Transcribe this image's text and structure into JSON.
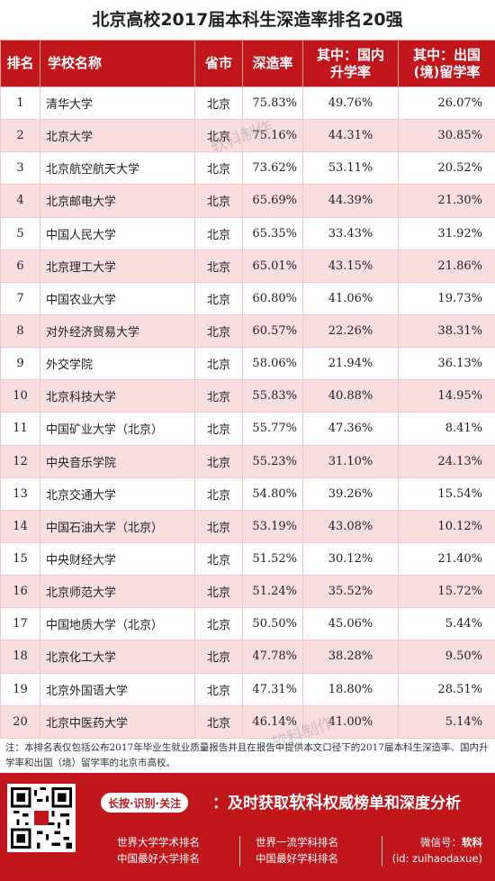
{
  "title": "北京高校2017届本科生深造率排名20强",
  "headers": {
    "rank": "排名",
    "name": "学校名称",
    "province": "省市",
    "rate": "深造率",
    "domestic_l1": "其中：国内",
    "domestic_l2": "升学率",
    "abroad_l1": "其中：出国",
    "abroad_l2": "(境)留学率"
  },
  "rows": [
    {
      "rank": "1",
      "name": "清华大学",
      "province": "北京",
      "rate": "75.83%",
      "domestic": "49.76%",
      "abroad": "26.07%"
    },
    {
      "rank": "2",
      "name": "北京大学",
      "province": "北京",
      "rate": "75.16%",
      "domestic": "44.31%",
      "abroad": "30.85%"
    },
    {
      "rank": "3",
      "name": "北京航空航天大学",
      "province": "北京",
      "rate": "73.62%",
      "domestic": "53.11%",
      "abroad": "20.52%"
    },
    {
      "rank": "4",
      "name": "北京邮电大学",
      "province": "北京",
      "rate": "65.69%",
      "domestic": "44.39%",
      "abroad": "21.30%"
    },
    {
      "rank": "5",
      "name": "中国人民大学",
      "province": "北京",
      "rate": "65.35%",
      "domestic": "33.43%",
      "abroad": "31.92%"
    },
    {
      "rank": "6",
      "name": "北京理工大学",
      "province": "北京",
      "rate": "65.01%",
      "domestic": "43.15%",
      "abroad": "21.86%"
    },
    {
      "rank": "7",
      "name": "中国农业大学",
      "province": "北京",
      "rate": "60.80%",
      "domestic": "41.06%",
      "abroad": "19.73%"
    },
    {
      "rank": "8",
      "name": "对外经济贸易大学",
      "province": "北京",
      "rate": "60.57%",
      "domestic": "22.26%",
      "abroad": "38.31%"
    },
    {
      "rank": "9",
      "name": "外交学院",
      "province": "北京",
      "rate": "58.06%",
      "domestic": "21.94%",
      "abroad": "36.13%"
    },
    {
      "rank": "10",
      "name": "北京科技大学",
      "province": "北京",
      "rate": "55.83%",
      "domestic": "40.88%",
      "abroad": "14.95%"
    },
    {
      "rank": "11",
      "name": "中国矿业大学（北京）",
      "province": "北京",
      "rate": "55.77%",
      "domestic": "47.36%",
      "abroad": "8.41%"
    },
    {
      "rank": "12",
      "name": "中央音乐学院",
      "province": "北京",
      "rate": "55.23%",
      "domestic": "31.10%",
      "abroad": "24.13%"
    },
    {
      "rank": "13",
      "name": "北京交通大学",
      "province": "北京",
      "rate": "54.80%",
      "domestic": "39.26%",
      "abroad": "15.54%"
    },
    {
      "rank": "14",
      "name": "中国石油大学（北京）",
      "province": "北京",
      "rate": "53.19%",
      "domestic": "43.08%",
      "abroad": "10.12%"
    },
    {
      "rank": "15",
      "name": "中央财经大学",
      "province": "北京",
      "rate": "51.52%",
      "domestic": "30.12%",
      "abroad": "21.40%"
    },
    {
      "rank": "16",
      "name": "北京师范大学",
      "province": "北京",
      "rate": "51.24%",
      "domestic": "35.52%",
      "abroad": "15.72%"
    },
    {
      "rank": "17",
      "name": "中国地质大学（北京）",
      "province": "北京",
      "rate": "50.50%",
      "domestic": "45.06%",
      "abroad": "5.44%"
    },
    {
      "rank": "18",
      "name": "北京化工大学",
      "province": "北京",
      "rate": "47.78%",
      "domestic": "38.28%",
      "abroad": "9.50%"
    },
    {
      "rank": "19",
      "name": "北京外国语大学",
      "province": "北京",
      "rate": "47.31%",
      "domestic": "18.80%",
      "abroad": "28.51%"
    },
    {
      "rank": "20",
      "name": "北京中医药大学",
      "province": "北京",
      "rate": "46.14%",
      "domestic": "41.00%",
      "abroad": "5.14%"
    }
  ],
  "watermark_text": "软科制作",
  "note": "注：本排名表仅包括公布2017年毕业生就业质量报告并且在报告中提供本文口径下的2017届本科生深造率、国内升学率和出国（境）留学率的北京市高校。",
  "footer": {
    "pill": "长按·识别·关注",
    "slogan_prefix": "：及时获取",
    "slogan_brand": "软科",
    "slogan_suffix": "权威榜单和深度分析",
    "links_left": [
      "世界大学学术排名",
      "中国最好大学排名"
    ],
    "links_right": [
      "世界一流学科排名",
      "中国最好学科排名"
    ],
    "wechat_label": "微信号：",
    "wechat_name": "软科",
    "wechat_id": "(id: zuihaodaxue)"
  },
  "colors": {
    "accent": "#c0161c",
    "row_alt": "#f8dede"
  }
}
